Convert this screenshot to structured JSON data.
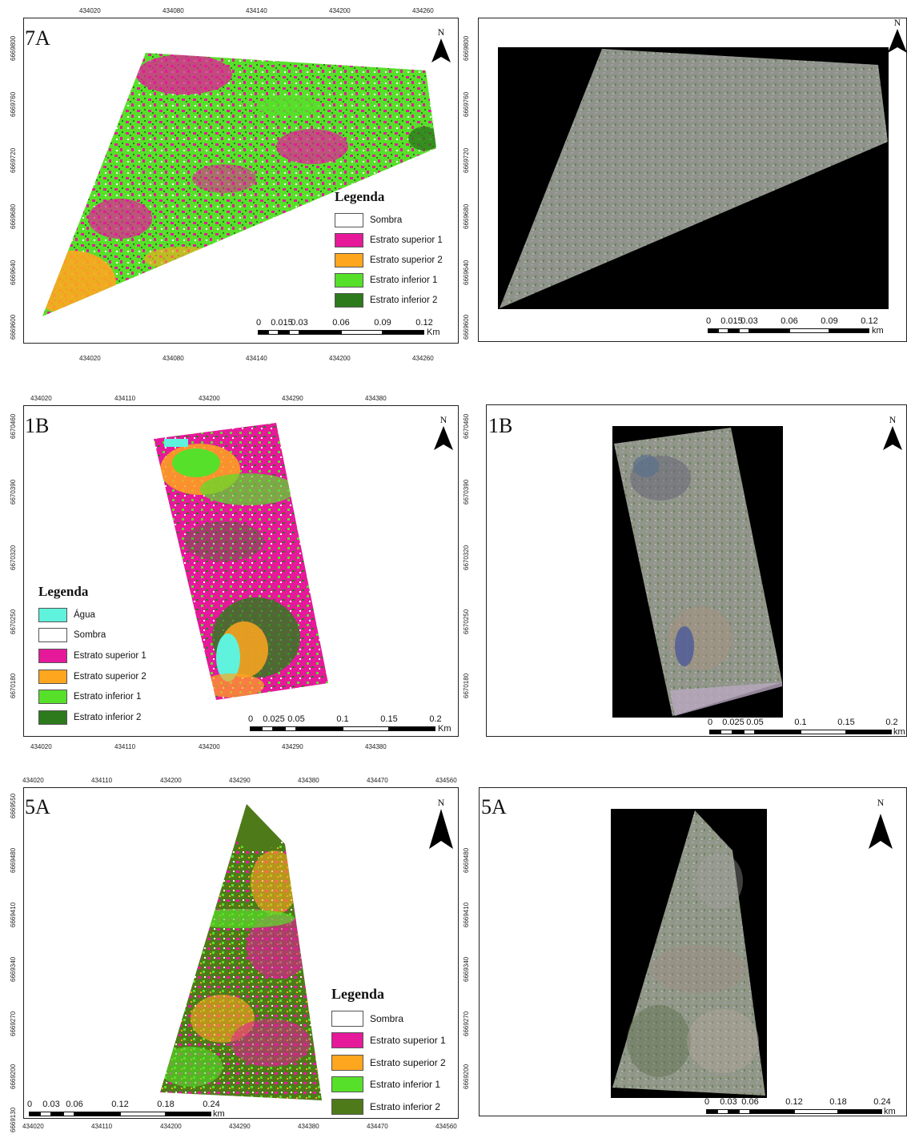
{
  "colors": {
    "sombra": "#ffffff",
    "estrato_superior_1": "#e6199b",
    "estrato_superior_2": "#ffa61f",
    "estrato_inferior_1": "#57e02a",
    "estrato_inferior_2": "#2d7a1c",
    "estrato_inferior_2_olive": "#4f7a1a",
    "agua": "#5ff2dc",
    "ortho_bg": "#000000",
    "ortho_fill": "#8f958c"
  },
  "panels": {
    "p7a": {
      "label": "7A",
      "north": "N",
      "x_ticks": [
        "434020",
        "434080",
        "434140",
        "434200",
        "434260"
      ],
      "y_ticks": [
        "6669800",
        "6669760",
        "6669720",
        "6669680",
        "6669640",
        "6669600"
      ],
      "legend": {
        "title": "Legenda",
        "items": [
          "Sombra",
          "Estrato superior 1",
          "Estrato superior 2",
          "Estrato inferior 1",
          "Estrato inferior 2"
        ]
      },
      "scale": {
        "labels": [
          "0",
          "0.015",
          "0.03",
          "0.06",
          "0.09",
          "0.12"
        ],
        "unit": "Km"
      }
    },
    "p7a_ortho": {
      "north": "N",
      "y_ticks": [
        "6669800",
        "6669760",
        "6669720",
        "6669680",
        "6669640",
        "6669600"
      ],
      "scale": {
        "labels": [
          "0",
          "0.015",
          "0.03",
          "0.06",
          "0.09",
          "0.12"
        ],
        "unit": "km"
      }
    },
    "p1b": {
      "label": "1B",
      "north": "N",
      "x_ticks": [
        "434020",
        "434110",
        "434200",
        "434290",
        "434380"
      ],
      "y_ticks": [
        "6670460",
        "6670390",
        "6670320",
        "6670250",
        "6670180"
      ],
      "legend": {
        "title": "Legenda",
        "items": [
          "Água",
          "Sombra",
          "Estrato superior 1",
          "Estrato superior 2",
          "Estrato inferior 1",
          "Estrato inferior 2"
        ]
      },
      "scale": {
        "labels": [
          "0",
          "0.025",
          "0.05",
          "0.1",
          "0.15",
          "0.2"
        ],
        "unit": "Km"
      }
    },
    "p1b_ortho": {
      "label": "1B",
      "north": "N",
      "y_ticks": [
        "6670460",
        "6670390",
        "6670320",
        "6670250",
        "6670180"
      ],
      "scale": {
        "labels": [
          "0",
          "0.025",
          "0.05",
          "0.1",
          "0.15",
          "0.2"
        ],
        "unit": "km"
      }
    },
    "p5a": {
      "label": "5A",
      "north": "N",
      "x_ticks": [
        "434020",
        "434110",
        "434200",
        "434290",
        "434380",
        "434470",
        "434560"
      ],
      "y_ticks": [
        "6669550",
        "6669480",
        "6669410",
        "6669340",
        "6669270",
        "6669200",
        "6669130"
      ],
      "legend": {
        "title": "Legenda",
        "items": [
          "Sombra",
          "Estrato superior 1",
          "Estrato superior 2",
          "Estrato inferior 1",
          "Estrato inferior 2"
        ]
      },
      "scale": {
        "labels": [
          "0",
          "0.03",
          "0.06",
          "0.12",
          "0.18",
          "0.24"
        ],
        "unit": "km"
      }
    },
    "p5a_ortho": {
      "label": "5A",
      "north": "N",
      "y_ticks": [
        "6669480",
        "6669410",
        "6669340",
        "6669270",
        "6669200"
      ],
      "scale": {
        "labels": [
          "0",
          "0.03",
          "0.06",
          "0.12",
          "0.18",
          "0.24"
        ],
        "unit": "km"
      }
    }
  }
}
